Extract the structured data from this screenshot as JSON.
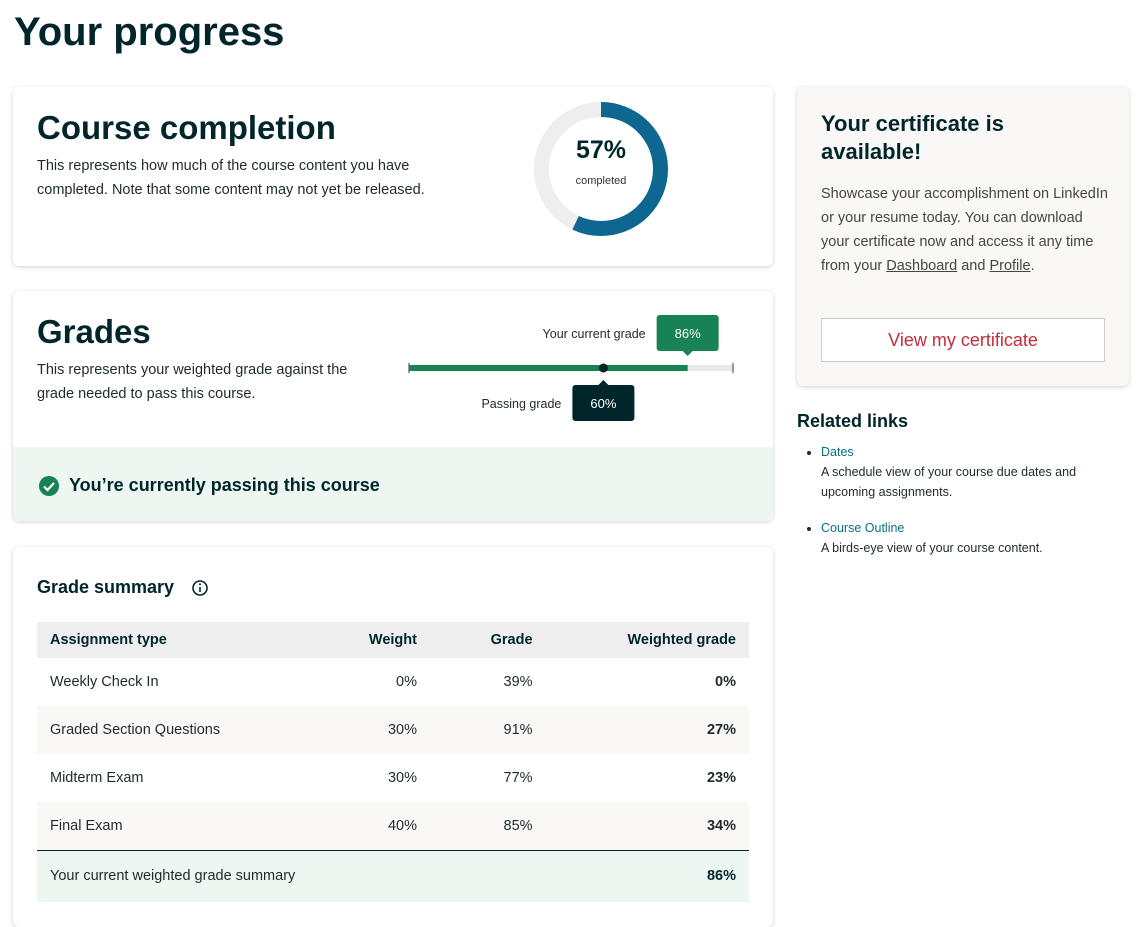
{
  "page": {
    "title": "Your progress"
  },
  "completion": {
    "title": "Course completion",
    "description": "This represents how much of the course content you have completed. Note that some content may not yet be released.",
    "percent": {
      "value": 57,
      "label": "57%"
    },
    "caption": "completed"
  },
  "grades": {
    "title": "Grades",
    "description": "This represents your weighted grade against the grade needed to pass this course.",
    "current_label": "Your current grade",
    "current": {
      "value": 86,
      "label": "86%"
    },
    "passing_label": "Passing grade",
    "passing": {
      "value": 60,
      "label": "60%"
    },
    "status": "You’re currently passing this course"
  },
  "summary": {
    "title": "Grade summary",
    "table": {
      "header": [
        "Assignment type",
        "Weight",
        "Grade",
        "Weighted grade"
      ],
      "rows": [
        [
          "Weekly Check In",
          "0%",
          "39%",
          "0%"
        ],
        [
          "Graded Section Questions",
          "30%",
          "91%",
          "27%"
        ],
        [
          "Midterm Exam",
          "30%",
          "77%",
          "23%"
        ],
        [
          "Final Exam",
          "40%",
          "85%",
          "34%"
        ]
      ],
      "footer": [
        "Your current weighted grade summary",
        "86%"
      ]
    }
  },
  "certificate": {
    "title": "Your certificate is available!",
    "text": [
      "Showcase your accomplishment on LinkedIn or your resume today. You can download your certificate now and access it any time from your ",
      "Dashboard",
      " and ",
      "Profile",
      "."
    ],
    "button": "View my certificate"
  },
  "related": {
    "title": "Related links",
    "links": [
      {
        "label": "Dates",
        "description": "A schedule view of your course due dates and upcoming assignments."
      },
      {
        "label": "Course Outline",
        "description": "A birds-eye view of your course content."
      }
    ]
  }
}
